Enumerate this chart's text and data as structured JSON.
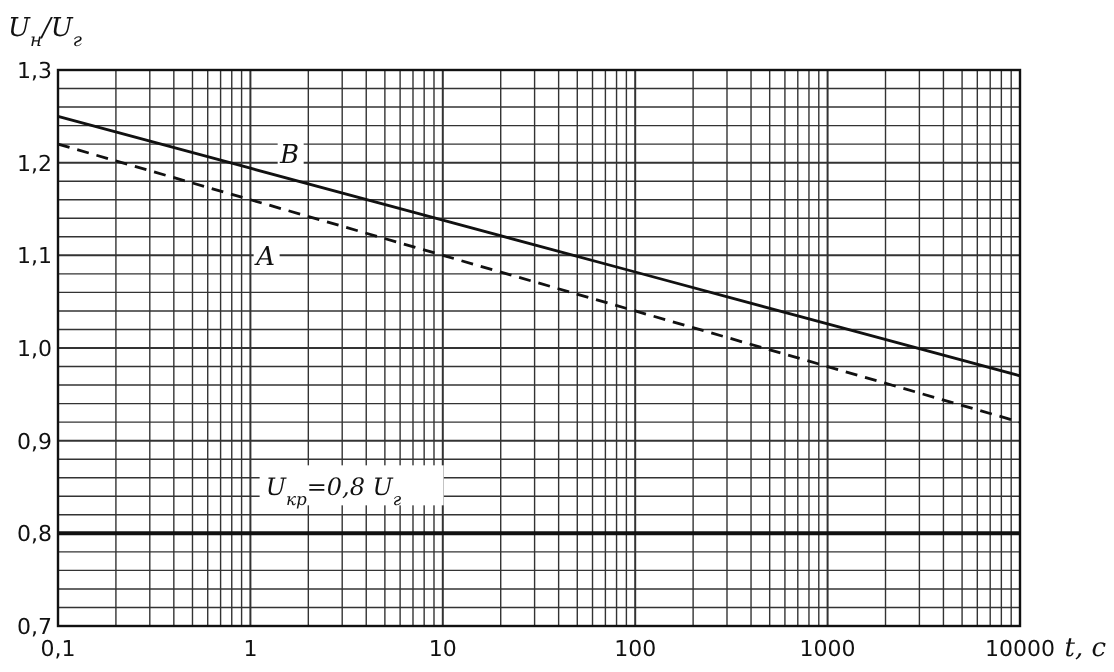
{
  "chart_data": {
    "type": "line",
    "xlabel": "t, c",
    "ylabel": "U$_{н}$/U$_{г}$",
    "log": "x",
    "grid": true,
    "xlim": [
      0.1,
      10000
    ],
    "ylim": [
      0.7,
      1.3
    ],
    "xticks": [
      {
        "value": 0.1,
        "label": "0,1"
      },
      {
        "value": 0.2,
        "label": null
      },
      {
        "value": 0.3,
        "label": null
      },
      {
        "value": 0.4,
        "label": null
      },
      {
        "value": 0.5,
        "label": null
      },
      {
        "value": 0.6,
        "label": null
      },
      {
        "value": 0.7,
        "label": null
      },
      {
        "value": 0.8,
        "label": null
      },
      {
        "value": 0.9,
        "label": null
      },
      1,
      {
        "value": 2,
        "label": null
      },
      {
        "value": 3,
        "label": null
      },
      {
        "value": 4,
        "label": null
      },
      {
        "value": 5,
        "label": null
      },
      {
        "value": 6,
        "label": null
      },
      {
        "value": 7,
        "label": null
      },
      {
        "value": 8,
        "label": null
      },
      {
        "value": 9,
        "label": null
      },
      10,
      {
        "value": 20,
        "label": null
      },
      {
        "value": 30,
        "label": null
      },
      {
        "value": 40,
        "label": null
      },
      {
        "value": 50,
        "label": null
      },
      {
        "value": 60,
        "label": null
      },
      {
        "value": 70,
        "label": null
      },
      {
        "value": 80,
        "label": null
      },
      {
        "value": 90,
        "label": null
      },
      100,
      {
        "value": 200,
        "label": null
      },
      {
        "value": 300,
        "label": null
      },
      {
        "value": 400,
        "label": null
      },
      {
        "value": 500,
        "label": null
      },
      {
        "value": 600,
        "label": null
      },
      {
        "value": 700,
        "label": null
      },
      {
        "value": 800,
        "label": null
      },
      {
        "value": 900,
        "label": null
      },
      1000,
      {
        "value": 2000,
        "label": null
      },
      {
        "value": 3000,
        "label": null
      },
      {
        "value": 4000,
        "label": null
      },
      {
        "value": 5000,
        "label": null
      },
      {
        "value": 6000,
        "label": null
      },
      {
        "value": 7000,
        "label": null
      },
      {
        "value": 8000,
        "label": null
      },
      {
        "value": 9000,
        "label": null
      },
      10000
    ],
    "yticks": [
      {
        "value": 0.7,
        "label": "0,7"
      },
      {
        "value": 0.72,
        "label": null
      },
      {
        "value": 0.74,
        "label": null
      },
      {
        "value": 0.76,
        "label": null
      },
      {
        "value": 0.78,
        "label": null
      },
      {
        "value": 0.8,
        "label": "0,8"
      },
      {
        "value": 0.82,
        "label": null
      },
      {
        "value": 0.84,
        "label": null
      },
      {
        "value": 0.86,
        "label": null
      },
      {
        "value": 0.88,
        "label": null
      },
      {
        "value": 0.9,
        "label": "0,9"
      },
      {
        "value": 0.92,
        "label": null
      },
      {
        "value": 0.94,
        "label": null
      },
      {
        "value": 0.96,
        "label": null
      },
      {
        "value": 0.98,
        "label": null
      },
      {
        "value": 1.0,
        "label": "1,0"
      },
      {
        "value": 1.02,
        "label": null
      },
      {
        "value": 1.04,
        "label": null
      },
      {
        "value": 1.06,
        "label": null
      },
      {
        "value": 1.08,
        "label": null
      },
      {
        "value": 1.1,
        "label": "1,1"
      },
      {
        "value": 1.12,
        "label": null
      },
      {
        "value": 1.14,
        "label": null
      },
      {
        "value": 1.16,
        "label": null
      },
      {
        "value": 1.18,
        "label": null
      },
      {
        "value": 1.2,
        "label": "1,2"
      },
      {
        "value": 1.22,
        "label": null
      },
      {
        "value": 1.24,
        "label": null
      },
      {
        "value": 1.26,
        "label": null
      },
      {
        "value": 1.28,
        "label": null
      },
      {
        "value": 1.3,
        "label": "1,3"
      }
    ],
    "series": [
      {
        "x": [
          0.1,
          1,
          10,
          100,
          1000,
          10000
        ],
        "values": [
          1.25,
          1.194,
          1.138,
          1.082,
          1.026,
          0.97
        ],
        "color": "#111111",
        "line_style": "solid"
      },
      {
        "x": [
          0.1,
          1,
          10,
          100,
          1000,
          10000
        ],
        "values": [
          1.22,
          1.16,
          1.1,
          1.04,
          0.98,
          0.92
        ],
        "color": "#111111",
        "line_style": "dashed"
      }
    ],
    "ref_lines": [
      {
        "axis": "y",
        "value": 0.8,
        "label": "U$_{кр}$=0,8 U$_{г}$",
        "color": "#111111"
      }
    ],
    "annotations": [
      {
        "text": "B",
        "x": 1.6,
        "y": 1.21
      },
      {
        "text": "A",
        "x": 1.2,
        "y": 1.1
      }
    ]
  }
}
